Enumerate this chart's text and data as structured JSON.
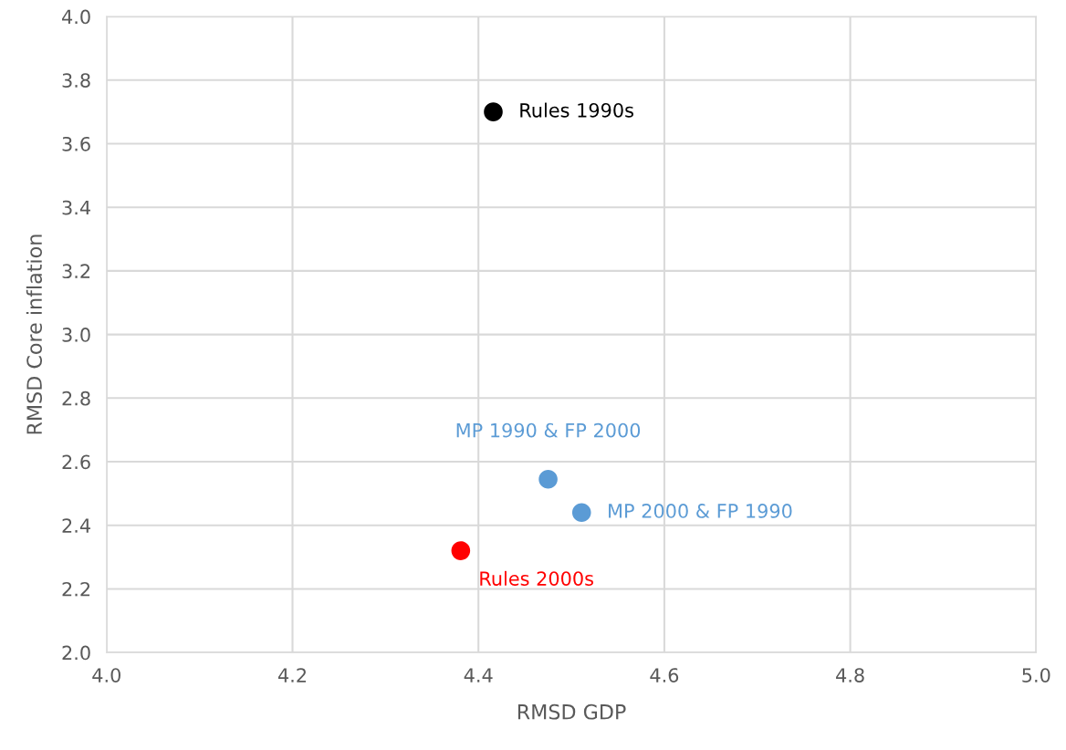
{
  "chart_data": {
    "type": "scatter",
    "xlabel": "RMSD GDP",
    "ylabel": "RMSD Core inflation",
    "xlim": [
      4.0,
      5.0
    ],
    "xticks": [
      {
        "value": 4.0,
        "label": "4.0"
      },
      {
        "value": 4.2,
        "label": "4.2"
      },
      {
        "value": 4.4,
        "label": "4.4"
      },
      {
        "value": 4.6,
        "label": "4.6"
      },
      {
        "value": 4.8,
        "label": "4.8"
      },
      {
        "value": 5.0,
        "label": "5.0"
      }
    ],
    "ylim": [
      2.0,
      4.0
    ],
    "yticks": [
      {
        "value": 2.0,
        "label": "2.0"
      },
      {
        "value": 2.2,
        "label": "2.2"
      },
      {
        "value": 2.4,
        "label": "2.4"
      },
      {
        "value": 2.6,
        "label": "2.6"
      },
      {
        "value": 2.8,
        "label": "2.8"
      },
      {
        "value": 3.0,
        "label": "3.0"
      },
      {
        "value": 3.2,
        "label": "3.2"
      },
      {
        "value": 3.4,
        "label": "3.4"
      },
      {
        "value": 3.6,
        "label": "3.6"
      },
      {
        "value": 3.8,
        "label": "3.8"
      },
      {
        "value": 4.0,
        "label": "4.0"
      }
    ],
    "grid": true,
    "marker": "circle",
    "series": [
      {
        "name": "Rules 1990s",
        "color": "#000000",
        "x": [
          4.416
        ],
        "values": [
          3.7
        ]
      },
      {
        "name": "MP 1990 & FP 2000",
        "color": "#5b9bd5",
        "x": [
          4.475
        ],
        "values": [
          2.545
        ]
      },
      {
        "name": "MP 2000 & FP 1990",
        "color": "#5b9bd5",
        "x": [
          4.511
        ],
        "values": [
          2.44
        ]
      },
      {
        "name": "Rules 2000s",
        "color": "#ff0000",
        "x": [
          4.381
        ],
        "values": [
          2.32
        ]
      }
    ]
  }
}
